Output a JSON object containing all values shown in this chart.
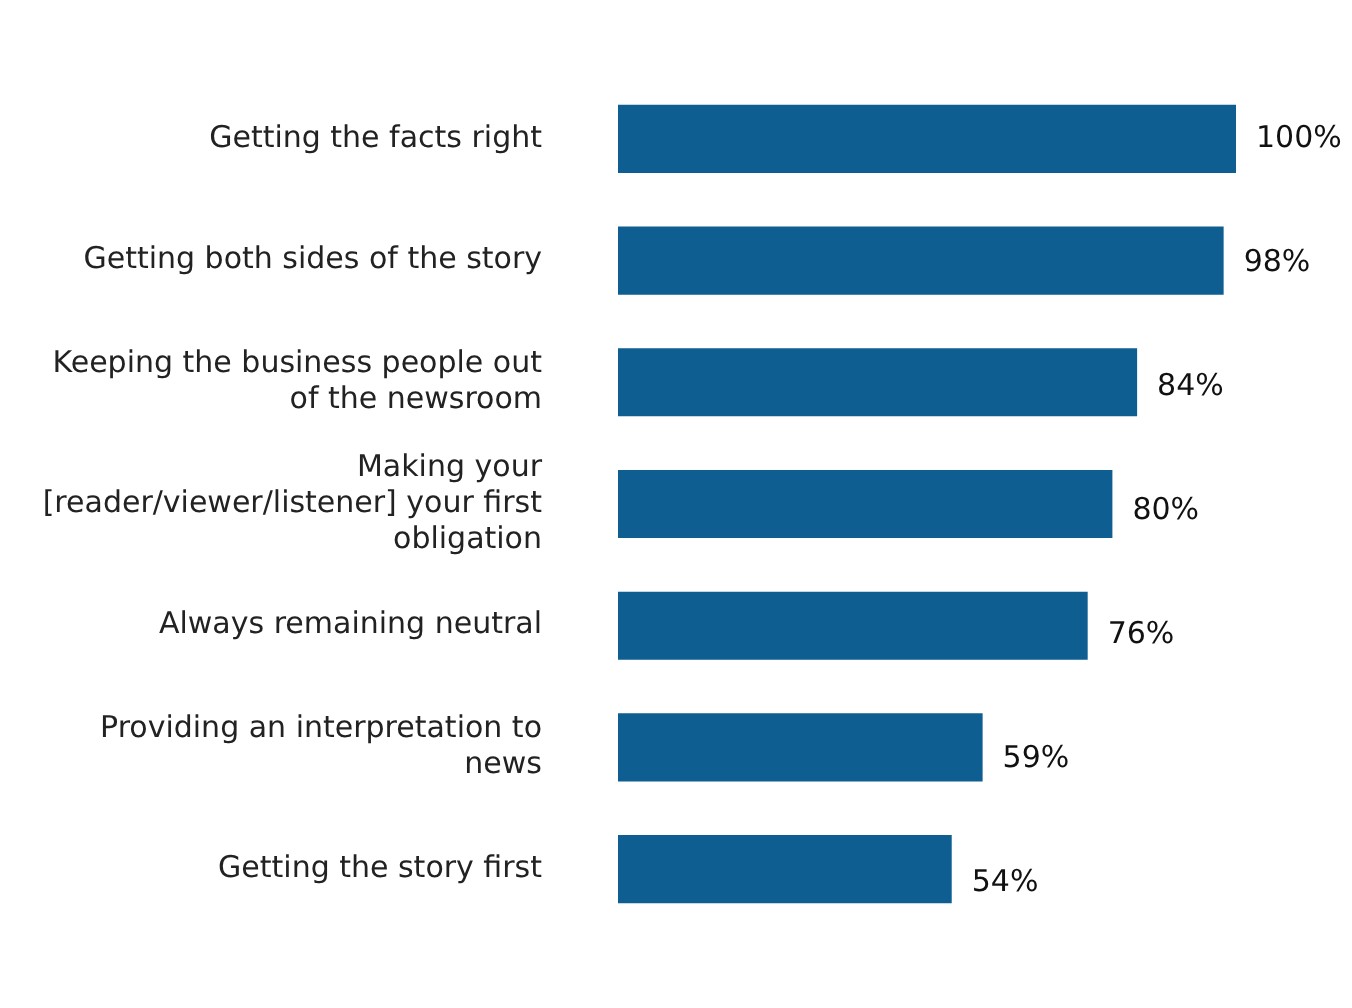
{
  "chart_data": {
    "type": "bar",
    "orientation": "horizontal",
    "categories": [
      "Getting the facts right",
      "Getting both sides of the story",
      "Keeping the business people out of the newsroom",
      "Making your [reader/viewer/listener] your first obligation",
      "Always remaining neutral",
      "Providing an interpretation to news",
      "Getting the story first"
    ],
    "values": [
      100,
      98,
      84,
      80,
      76,
      59,
      54
    ],
    "value_labels": [
      "100%",
      "98%",
      "84%",
      "80%",
      "76%",
      "59%",
      "54%"
    ],
    "color": "#0f5e91"
  }
}
